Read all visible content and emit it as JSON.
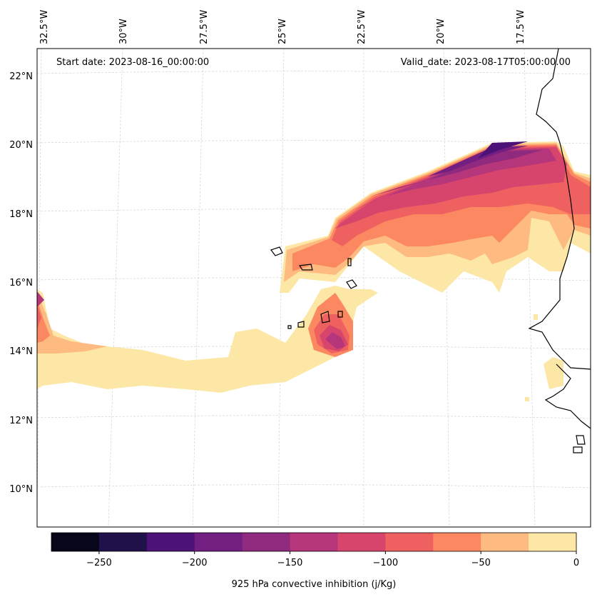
{
  "map": {
    "title": "",
    "start_date": "Start date: 2023-08-16_00:00:00",
    "valid_date": "Valid_date: 2023-08-17T05:00:00.00",
    "lon_labels": [
      "32.5°W",
      "30°W",
      "27.5°W",
      "25°W",
      "22.5°W",
      "20°W",
      "17.5°W"
    ],
    "lat_labels": [
      "22°N",
      "20°N",
      "18°N",
      "16°N",
      "14°N",
      "12°N",
      "10°N"
    ]
  },
  "colorbar": {
    "label": "925 hPa convective inhibition (j/Kg)",
    "tick_labels": [
      "−250",
      "−200",
      "−150",
      "−100",
      "−50",
      "0"
    ],
    "levels": [
      -275,
      -250,
      -225,
      -200,
      -175,
      -150,
      -125,
      -100,
      -75,
      -50,
      -25,
      0
    ],
    "colors": [
      "#07061a",
      "#21114a",
      "#4d1278",
      "#721f81",
      "#8f2a7e",
      "#b5367a",
      "#d8456c",
      "#ef6060",
      "#fb8861",
      "#febb81",
      "#fde7a6"
    ]
  },
  "chart_data": {
    "type": "filled-contour-map",
    "variable": "925 hPa convective inhibition",
    "units": "j/Kg",
    "value_range": [
      -275,
      0
    ],
    "lon_range_deg_W": [
      33,
      16
    ],
    "lat_range_deg_N": [
      9,
      22.8
    ]
  }
}
